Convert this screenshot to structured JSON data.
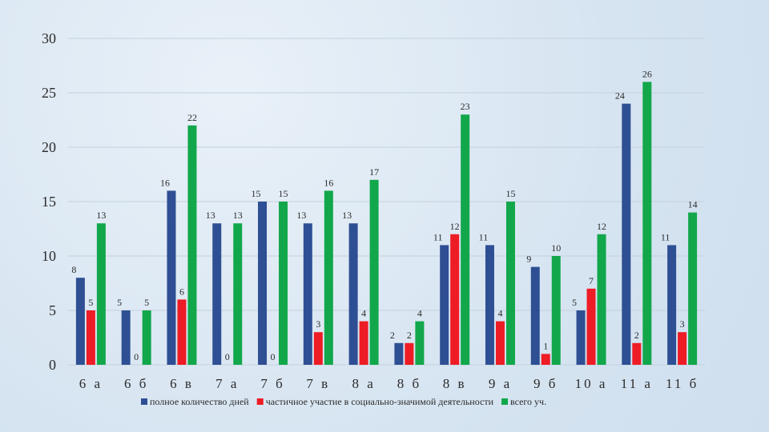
{
  "chart_data": {
    "type": "bar",
    "categories": [
      "6 а",
      "6 б",
      "6 в",
      "7 а",
      "7 б",
      "7 в",
      "8 а",
      "8 б",
      "8 в",
      "9 а",
      "9 б",
      "10 а",
      "11 а",
      "11 б"
    ],
    "series": [
      {
        "name": "полное количество дней",
        "color": "#2e4f93",
        "values": [
          8,
          5,
          16,
          13,
          15,
          13,
          13,
          2,
          11,
          11,
          9,
          5,
          24,
          11
        ]
      },
      {
        "name": "частичное участие в социально-значимой деятельности",
        "color": "#ee1c25",
        "values": [
          5,
          0,
          6,
          0,
          0,
          3,
          4,
          2,
          12,
          4,
          1,
          7,
          2,
          3
        ]
      },
      {
        "name": "всего уч.",
        "color": "#12a74b",
        "values": [
          13,
          5,
          22,
          13,
          15,
          16,
          17,
          4,
          23,
          15,
          10,
          12,
          26,
          14
        ]
      }
    ],
    "ylim": [
      0,
      30
    ],
    "yticks": [
      0,
      5,
      10,
      15,
      20,
      25,
      30
    ],
    "grid": true,
    "legend_position": "bottom"
  }
}
